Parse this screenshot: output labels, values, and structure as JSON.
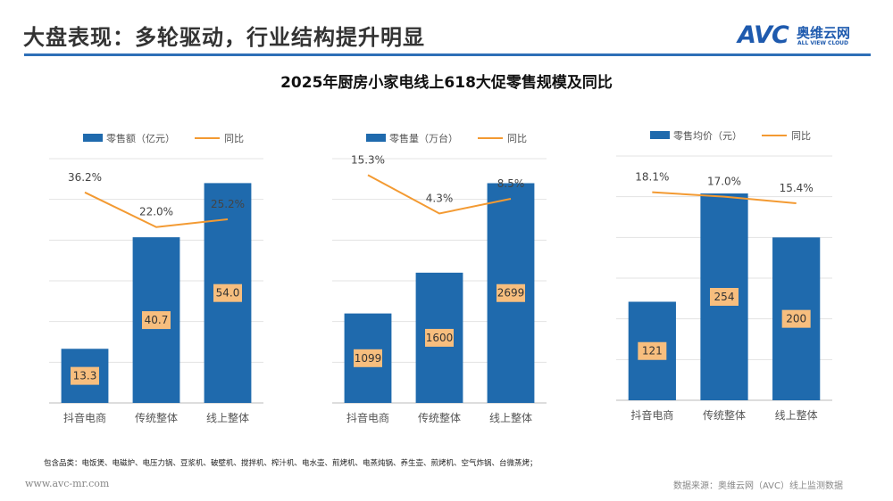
{
  "header": {
    "title": "大盘表现：多轮驱动，行业结构提升明显",
    "logo_mark": "AVC",
    "logo_cn": "奥维云网",
    "logo_en": "ALL VIEW CLOUD"
  },
  "subtitle": "2025年厨房小家电线上618大促零售规模及同比",
  "colors": {
    "bar": "#1F6AAD",
    "line": "#F39A32",
    "label_box": "#F7BE7E",
    "accent": "#2E6FB7"
  },
  "chart_data": [
    {
      "type": "bar",
      "categories": [
        "抖音电商",
        "传统整体",
        "线上整体"
      ],
      "bar_series": "零售额（亿元）",
      "line_series": "同比",
      "values": [
        13.3,
        40.7,
        54.0
      ],
      "value_labels": [
        "13.3",
        "40.7",
        "54.0"
      ],
      "yoy": [
        36.2,
        22.0,
        25.2
      ],
      "yoy_labels": [
        "36.2%",
        "22.0%",
        "25.2%"
      ],
      "ylim": [
        0,
        60
      ],
      "y2lim": [
        -50,
        50
      ]
    },
    {
      "type": "bar",
      "categories": [
        "抖音电商",
        "传统整体",
        "线上整体"
      ],
      "bar_series": "零售量（万台）",
      "line_series": "同比",
      "values": [
        1099,
        1600,
        2699
      ],
      "value_labels": [
        "1099",
        "1600",
        "2699"
      ],
      "yoy": [
        15.3,
        4.3,
        8.5
      ],
      "yoy_labels": [
        "15.3%",
        "4.3%",
        "8.5%"
      ],
      "ylim": [
        0,
        3000
      ],
      "y2lim": [
        -50,
        20
      ]
    },
    {
      "type": "bar",
      "categories": [
        "抖音电商",
        "传统整体",
        "线上整体"
      ],
      "bar_series": "零售均价（元）",
      "line_series": "同比",
      "values": [
        121,
        254,
        200
      ],
      "value_labels": [
        "121",
        "254",
        "200"
      ],
      "yoy": [
        18.1,
        17.0,
        15.4
      ],
      "yoy_labels": [
        "18.1%",
        "17.0%",
        "15.4%"
      ],
      "ylim": [
        0,
        300
      ],
      "y2lim": [
        -33,
        27
      ]
    }
  ],
  "footer": {
    "categories_note": "包含品类：电饭煲、电磁炉、电压力锅、豆浆机、破壁机、搅拌机、榨汁机、电水壶、煎烤机、电蒸炖锅、养生壶、煎烤机、空气炸锅、台微蒸烤；",
    "url": "www.avc-mr.com",
    "source": "数据来源：奥维云网（AVC）线上监测数据"
  }
}
